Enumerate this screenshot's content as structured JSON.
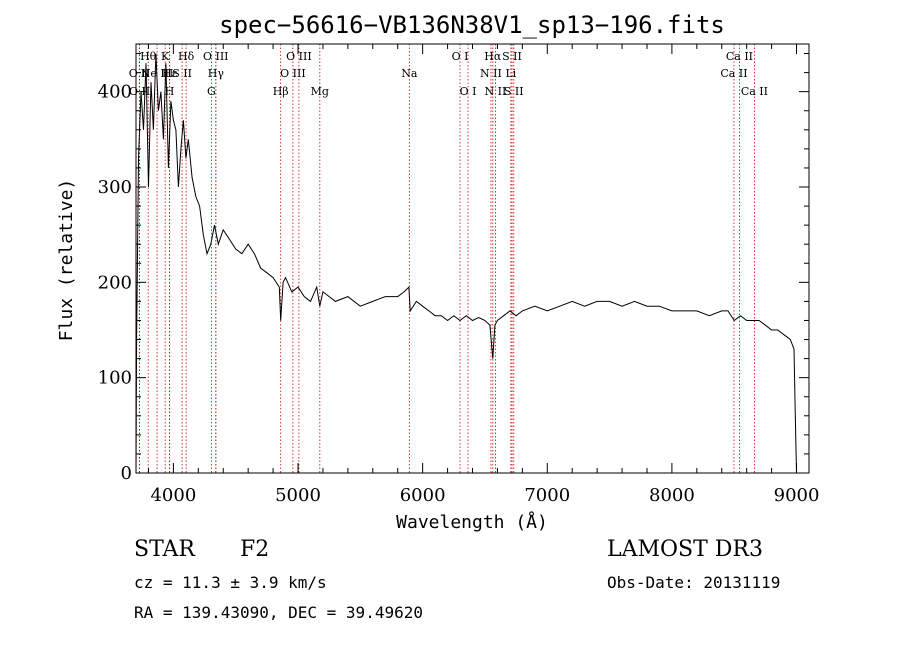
{
  "chart_data": {
    "type": "line",
    "title": "spec−56616−VB136N38V1_sp13−196.fits",
    "xlabel": "Wavelength (Å)",
    "ylabel": "Flux (relative)",
    "xlim": [
      3700,
      9100
    ],
    "ylim": [
      0,
      450
    ],
    "xticks": [
      4000,
      5000,
      6000,
      7000,
      8000,
      9000
    ],
    "yticks": [
      0,
      100,
      200,
      300,
      400
    ],
    "line_color": "#cc0000",
    "series": [
      {
        "x": [
          3700,
          3705,
          3720,
          3740,
          3760,
          3780,
          3800,
          3820,
          3840,
          3860,
          3880,
          3900,
          3920,
          3940,
          3960,
          3980,
          4000,
          4020,
          4040,
          4060,
          4080,
          4100,
          4120,
          4150,
          4180,
          4210,
          4240,
          4270,
          4300,
          4330,
          4360,
          4400,
          4450,
          4500,
          4550,
          4600,
          4650,
          4700,
          4750,
          4800,
          4850,
          4861,
          4880,
          4900,
          4950,
          5000,
          5050,
          5100,
          5150,
          5175,
          5200,
          5250,
          5300,
          5400,
          5500,
          5600,
          5700,
          5800,
          5850,
          5890,
          5900,
          5950,
          6000,
          6050,
          6100,
          6150,
          6200,
          6250,
          6300,
          6350,
          6400,
          6450,
          6500,
          6540,
          6563,
          6580,
          6600,
          6650,
          6700,
          6750,
          6800,
          6900,
          7000,
          7100,
          7200,
          7300,
          7400,
          7500,
          7600,
          7700,
          7800,
          7900,
          8000,
          8100,
          8200,
          8300,
          8400,
          8450,
          8500,
          8550,
          8600,
          8650,
          8700,
          8750,
          8800,
          8850,
          8900,
          8950,
          8980,
          8990,
          9000
        ],
        "y": [
          0,
          140,
          330,
          400,
          360,
          430,
          300,
          410,
          360,
          440,
          380,
          400,
          350,
          430,
          320,
          390,
          370,
          360,
          300,
          340,
          370,
          330,
          350,
          310,
          290,
          280,
          250,
          230,
          240,
          260,
          240,
          255,
          245,
          235,
          230,
          240,
          230,
          215,
          210,
          205,
          195,
          160,
          200,
          205,
          190,
          195,
          185,
          180,
          195,
          175,
          190,
          185,
          180,
          185,
          175,
          180,
          185,
          185,
          190,
          195,
          170,
          180,
          175,
          170,
          165,
          165,
          160,
          165,
          160,
          165,
          160,
          163,
          160,
          155,
          120,
          155,
          160,
          165,
          170,
          165,
          170,
          175,
          170,
          175,
          180,
          175,
          180,
          180,
          175,
          180,
          175,
          175,
          170,
          170,
          170,
          165,
          170,
          170,
          160,
          165,
          160,
          160,
          160,
          155,
          150,
          150,
          145,
          140,
          130,
          60,
          0
        ]
      }
    ],
    "lines": [
      {
        "name": "O II",
        "x": 3727,
        "row": 1
      },
      {
        "name": "O II",
        "x": 3729,
        "row": 2
      },
      {
        "name": "Hθ",
        "x": 3798,
        "row": 0
      },
      {
        "name": "Ne III",
        "x": 3869,
        "row": 1
      },
      {
        "name": "K",
        "x": 3934,
        "row": 0
      },
      {
        "name": "Hε",
        "x": 3970,
        "row": 1
      },
      {
        "name": "H",
        "x": 3969,
        "row": 2
      },
      {
        "name": "S II",
        "x": 4070,
        "row": 1
      },
      {
        "name": "Hδ",
        "x": 4102,
        "row": 0
      },
      {
        "name": "G",
        "x": 4305,
        "row": 2
      },
      {
        "name": "O III",
        "x": 4340,
        "row": 0
      },
      {
        "name": "Hγ",
        "x": 4341,
        "row": 1
      },
      {
        "name": "Hβ",
        "x": 4861,
        "row": 2
      },
      {
        "name": "O III",
        "x": 5007,
        "row": 0
      },
      {
        "name": "O III",
        "x": 4959,
        "row": 1
      },
      {
        "name": "Mg",
        "x": 5175,
        "row": 2
      },
      {
        "name": "Na",
        "x": 5893,
        "row": 1
      },
      {
        "name": "O I",
        "x": 6300,
        "row": 0
      },
      {
        "name": "O I",
        "x": 6364,
        "row": 2
      },
      {
        "name": "Hα",
        "x": 6563,
        "row": 0
      },
      {
        "name": "N II",
        "x": 6548,
        "row": 1
      },
      {
        "name": "N II",
        "x": 6584,
        "row": 2
      },
      {
        "name": "S II",
        "x": 6717,
        "row": 0
      },
      {
        "name": "Li",
        "x": 6708,
        "row": 1
      },
      {
        "name": "S II",
        "x": 6731,
        "row": 2
      },
      {
        "name": "Ca II",
        "x": 8542,
        "row": 0
      },
      {
        "name": "Ca II",
        "x": 8498,
        "row": 1
      },
      {
        "name": "Ca II",
        "x": 8662,
        "row": 2
      }
    ]
  },
  "info": {
    "object_class": "STAR",
    "subclass": "F2",
    "survey": "LAMOST DR3",
    "cz": "cz = 11.3 ± 3.9 km/s",
    "obs_date": "Obs-Date: 20131119",
    "radec": "RA = 139.43090, DEC =  39.49620"
  }
}
